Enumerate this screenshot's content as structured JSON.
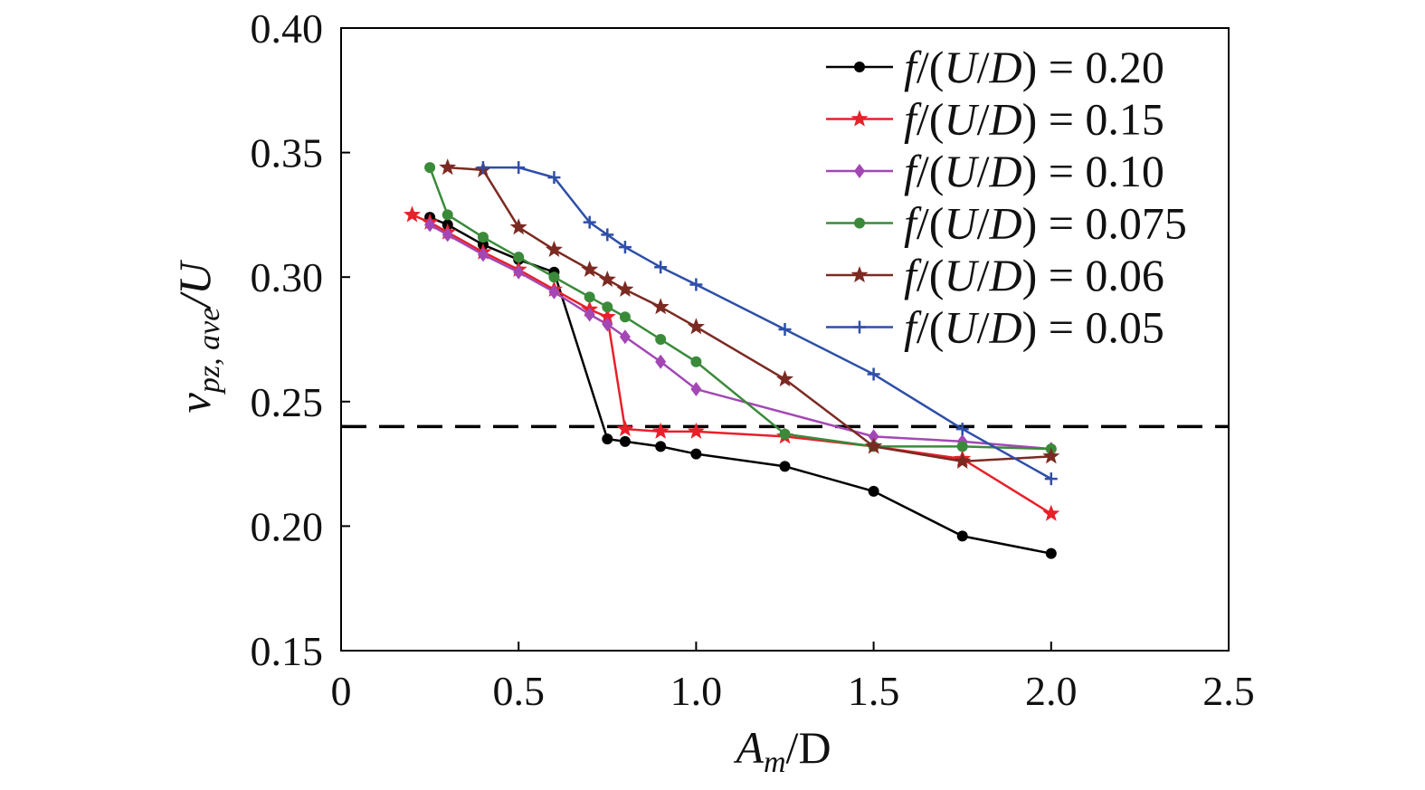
{
  "chart_data": {
    "type": "line",
    "title": "",
    "xlabel": "A_m/D",
    "ylabel": "v_pz, ave/U",
    "xlabel_parts": {
      "main": "A",
      "sub": "m",
      "rest": "/D"
    },
    "ylabel_parts": {
      "main": "v",
      "sub": "pz, ave",
      "rest": "/U"
    },
    "xlim": [
      0,
      2.5
    ],
    "ylim": [
      0.15,
      0.4
    ],
    "xticks": [
      "0",
      "0.5",
      "1.0",
      "1.5",
      "2.0",
      "2.5"
    ],
    "xtick_values": [
      0,
      0.5,
      1.0,
      1.5,
      2.0,
      2.5
    ],
    "yticks": [
      "0.15",
      "0.20",
      "0.25",
      "0.30",
      "0.35",
      "0.40"
    ],
    "ytick_values": [
      0.15,
      0.2,
      0.25,
      0.3,
      0.35,
      0.4
    ],
    "grid": false,
    "legend_position": "top-right",
    "reference_line": {
      "y": 0.24,
      "style": "dashed",
      "color": "#000000"
    },
    "series": [
      {
        "name": "f/(U/D) = 0.20",
        "color": "#000000",
        "marker": "circle",
        "x": [
          0.25,
          0.3,
          0.4,
          0.5,
          0.6,
          0.75,
          0.8,
          0.9,
          1.0,
          1.25,
          1.5,
          1.75,
          2.0
        ],
        "y": [
          0.324,
          0.321,
          0.313,
          0.307,
          0.302,
          0.235,
          0.234,
          0.232,
          0.229,
          0.224,
          0.214,
          0.196,
          0.189
        ]
      },
      {
        "name": "f/(U/D) = 0.15",
        "color": "#e8202a",
        "marker": "star",
        "x": [
          0.2,
          0.25,
          0.3,
          0.4,
          0.5,
          0.6,
          0.7,
          0.75,
          0.8,
          0.9,
          1.0,
          1.25,
          1.5,
          1.75,
          2.0
        ],
        "y": [
          0.325,
          0.322,
          0.318,
          0.31,
          0.303,
          0.295,
          0.287,
          0.284,
          0.239,
          0.238,
          0.238,
          0.236,
          0.232,
          0.227,
          0.205
        ]
      },
      {
        "name": "f/(U/D) = 0.10",
        "color": "#a347b5",
        "marker": "diamond",
        "x": [
          0.25,
          0.3,
          0.4,
          0.5,
          0.6,
          0.7,
          0.75,
          0.8,
          0.9,
          1.0,
          1.5,
          1.75,
          2.0
        ],
        "y": [
          0.321,
          0.317,
          0.309,
          0.302,
          0.294,
          0.285,
          0.281,
          0.276,
          0.266,
          0.255,
          0.236,
          0.234,
          0.231
        ]
      },
      {
        "name": "f/(U/D) = 0.075",
        "color": "#3a8a3a",
        "marker": "circle",
        "x": [
          0.25,
          0.3,
          0.4,
          0.5,
          0.6,
          0.7,
          0.75,
          0.8,
          0.9,
          1.0,
          1.25,
          1.5,
          1.75,
          2.0
        ],
        "y": [
          0.344,
          0.325,
          0.316,
          0.308,
          0.3,
          0.292,
          0.288,
          0.284,
          0.275,
          0.266,
          0.237,
          0.232,
          0.232,
          0.231
        ]
      },
      {
        "name": "f/(U/D) = 0.06",
        "color": "#7b2a22",
        "marker": "star",
        "x": [
          0.3,
          0.4,
          0.5,
          0.6,
          0.7,
          0.75,
          0.8,
          0.9,
          1.0,
          1.25,
          1.5,
          1.75,
          2.0
        ],
        "y": [
          0.344,
          0.343,
          0.32,
          0.311,
          0.303,
          0.299,
          0.295,
          0.288,
          0.28,
          0.259,
          0.232,
          0.226,
          0.228
        ]
      },
      {
        "name": "f/(U/D) = 0.05",
        "color": "#2e4fa8",
        "marker": "plus",
        "x": [
          0.4,
          0.5,
          0.6,
          0.7,
          0.75,
          0.8,
          0.9,
          1.0,
          1.25,
          1.5,
          1.75,
          2.0
        ],
        "y": [
          0.344,
          0.344,
          0.34,
          0.322,
          0.317,
          0.312,
          0.304,
          0.297,
          0.279,
          0.261,
          0.239,
          0.219
        ]
      }
    ]
  }
}
